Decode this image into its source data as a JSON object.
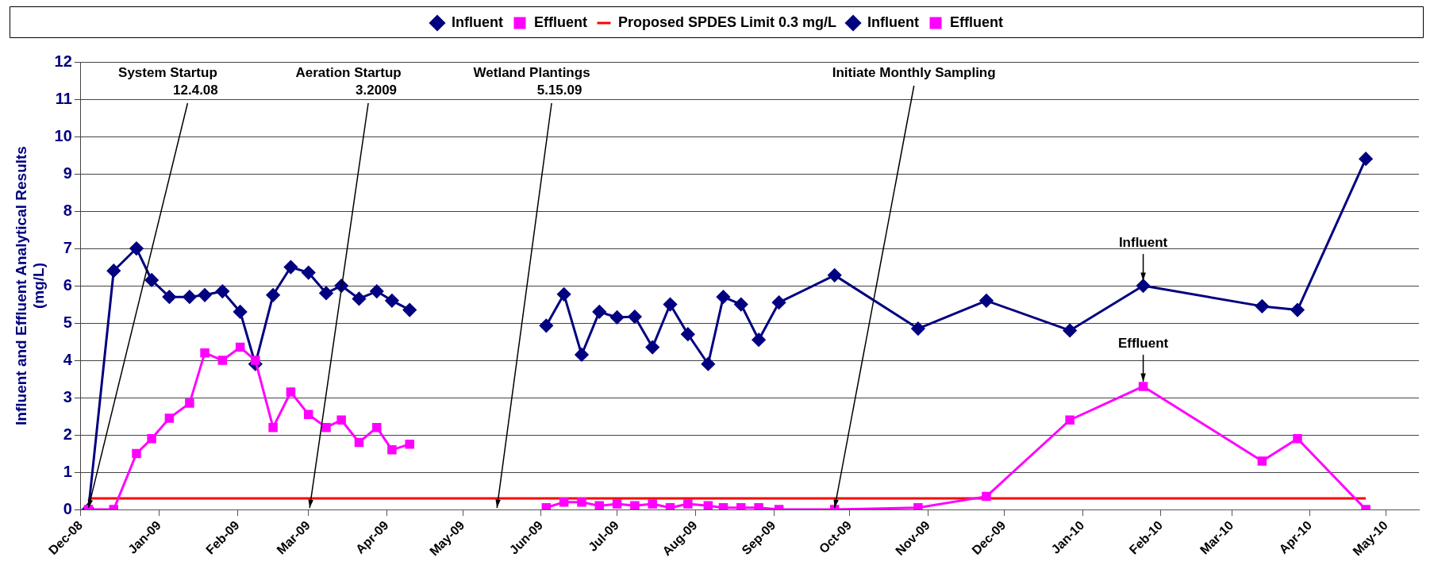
{
  "chart_data": {
    "type": "line",
    "ylabel": "Influent and Effluent Analytical Results\n(mg/L)",
    "xlim": [
      "2008-12-01",
      "2010-05-14"
    ],
    "xticks": [
      {
        "value": "2008-12-01",
        "label": "Dec-08"
      },
      {
        "value": "2009-01-01",
        "label": "Jan-09"
      },
      {
        "value": "2009-02-01",
        "label": "Feb-09"
      },
      {
        "value": "2009-03-01",
        "label": "Mar-09"
      },
      {
        "value": "2009-04-01",
        "label": "Apr-09"
      },
      {
        "value": "2009-05-01",
        "label": "May-09"
      },
      {
        "value": "2009-06-01",
        "label": "Jun-09"
      },
      {
        "value": "2009-07-01",
        "label": "Jul-09"
      },
      {
        "value": "2009-08-01",
        "label": "Aug-09"
      },
      {
        "value": "2009-09-01",
        "label": "Sep-09"
      },
      {
        "value": "2009-10-01",
        "label": "Oct-09"
      },
      {
        "value": "2009-11-01",
        "label": "Nov-09"
      },
      {
        "value": "2009-12-01",
        "label": "Dec-09"
      },
      {
        "value": "2010-01-01",
        "label": "Jan-10"
      },
      {
        "value": "2010-02-01",
        "label": "Feb-10"
      },
      {
        "value": "2010-03-01",
        "label": "Mar-10"
      },
      {
        "value": "2010-04-01",
        "label": "Apr-10"
      },
      {
        "value": "2010-05-01",
        "label": "May-10"
      }
    ],
    "ylim": [
      0,
      12
    ],
    "yticks": [
      0,
      1,
      2,
      3,
      4,
      5,
      6,
      7,
      8,
      9,
      10,
      11,
      12
    ],
    "grid": "y",
    "legend": "top",
    "series": [
      {
        "name": "Influent",
        "color": "#000080",
        "marker": "diamond",
        "x": [
          "2008-12-04",
          "2008-12-14",
          "2008-12-23",
          "2008-12-29",
          "2009-01-05",
          "2009-01-13",
          "2009-01-19",
          "2009-01-26",
          "2009-02-02",
          "2009-02-08",
          "2009-02-15",
          "2009-02-22",
          "2009-03-01",
          "2009-03-08",
          "2009-03-14",
          "2009-03-21",
          "2009-03-28",
          "2009-04-03",
          "2009-04-10"
        ],
        "values": [
          0,
          6.4,
          7.0,
          6.15,
          5.7,
          5.7,
          5.75,
          5.85,
          5.3,
          3.9,
          5.75,
          6.5,
          6.35,
          5.8,
          6.0,
          5.65,
          5.85,
          5.6,
          5.35
        ]
      },
      {
        "name": "Effluent",
        "color": "#ff00ff",
        "marker": "square",
        "x": [
          "2008-12-04",
          "2008-12-14",
          "2008-12-23",
          "2008-12-29",
          "2009-01-05",
          "2009-01-13",
          "2009-01-19",
          "2009-01-26",
          "2009-02-02",
          "2009-02-08",
          "2009-02-15",
          "2009-02-22",
          "2009-03-01",
          "2009-03-08",
          "2009-03-14",
          "2009-03-21",
          "2009-03-28",
          "2009-04-03",
          "2009-04-10"
        ],
        "values": [
          0,
          0,
          1.5,
          1.9,
          2.45,
          2.85,
          4.2,
          4.0,
          4.35,
          4.0,
          2.2,
          3.15,
          2.55,
          2.2,
          2.4,
          1.8,
          2.2,
          1.6,
          1.75
        ]
      },
      {
        "name": "Proposed SPDES Limit 0.3 mg/L",
        "color": "#ff0000",
        "marker": "none",
        "x": [
          "2008-12-04",
          "2010-04-23"
        ],
        "values": [
          0.3,
          0.3
        ]
      },
      {
        "name": "Influent",
        "color": "#000080",
        "marker": "diamond",
        "x": [
          "2009-06-03",
          "2009-06-10",
          "2009-06-17",
          "2009-06-24",
          "2009-07-01",
          "2009-07-08",
          "2009-07-15",
          "2009-07-22",
          "2009-07-29",
          "2009-08-06",
          "2009-08-12",
          "2009-08-19",
          "2009-08-26",
          "2009-09-03",
          "2009-09-25",
          "2009-10-28",
          "2009-11-24",
          "2009-12-27",
          "2010-01-25",
          "2010-03-13",
          "2010-03-27",
          "2010-04-23"
        ],
        "values": [
          4.93,
          5.77,
          4.15,
          5.3,
          5.15,
          5.17,
          4.35,
          5.5,
          4.7,
          3.9,
          5.7,
          5.5,
          4.55,
          5.55,
          6.28,
          4.85,
          5.6,
          4.8,
          6.0,
          5.45,
          5.35,
          9.4
        ]
      },
      {
        "name": "Effluent",
        "color": "#ff00ff",
        "marker": "square",
        "x": [
          "2009-06-03",
          "2009-06-10",
          "2009-06-17",
          "2009-06-24",
          "2009-07-01",
          "2009-07-08",
          "2009-07-15",
          "2009-07-22",
          "2009-07-29",
          "2009-08-06",
          "2009-08-12",
          "2009-08-19",
          "2009-08-26",
          "2009-09-03",
          "2009-09-25",
          "2009-10-28",
          "2009-11-24",
          "2009-12-27",
          "2010-01-25",
          "2010-03-13",
          "2010-03-27",
          "2010-04-23"
        ],
        "values": [
          0.05,
          0.2,
          0.2,
          0.1,
          0.15,
          0.1,
          0.15,
          0.05,
          0.15,
          0.1,
          0.05,
          0.05,
          0.05,
          0,
          0,
          0.05,
          0.35,
          2.4,
          3.3,
          1.3,
          1.9,
          0
        ]
      }
    ],
    "annotations": [
      {
        "text": "System Startup\n12.4.08",
        "x": "2008-12-04",
        "y": 0
      },
      "Aeration Startup\n3.2009",
      "Wetland Plantings\n5.15.09",
      {
        "text": "Initiate Monthly Sampling",
        "x": "2009-09-25",
        "y": 0
      },
      {
        "text": "Influent",
        "x": "2010-01-25",
        "y": 6.0
      },
      {
        "text": "Effluent",
        "x": "2010-01-25",
        "y": 3.3
      }
    ]
  }
}
